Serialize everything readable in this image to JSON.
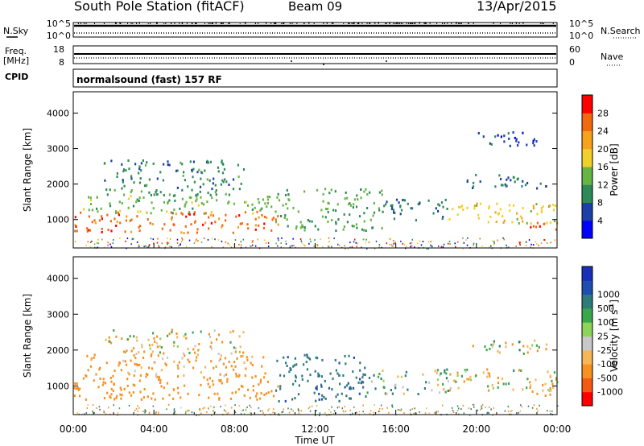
{
  "header": {
    "station": "South Pole Station (fitACF)",
    "beam": "Beam 09",
    "date": "13/Apr/2015"
  },
  "status_panels": {
    "nsky_label": "N.Sky",
    "nsky_ticks": [
      "10^5",
      "10^0"
    ],
    "nsearch_label": "N.Search",
    "nsearch_ticks": [
      "10^5",
      "10^0"
    ],
    "freq_label_line1": "Freq.",
    "freq_label_line2": "[MHz]",
    "freq_ticks": [
      "18",
      "8"
    ],
    "nave_label": "Nave",
    "nave_ticks": [
      "60",
      "0"
    ],
    "cpid_label": "CPID",
    "cpid_text": "normalsound (fast) 157 RF"
  },
  "colors": {
    "power_scale": [
      "#0000ff",
      "#1d3fa8",
      "#2f8a5a",
      "#66b544",
      "#f2cf2a",
      "#f7a21d",
      "#f26a10",
      "#ff0000"
    ],
    "velocity_scale": [
      "#ff0000",
      "#f55a12",
      "#f7911f",
      "#f5b75a",
      "#c8c8c8",
      "#8fd45a",
      "#3aa84a",
      "#2f7a7a",
      "#1f4db0",
      "#1a2fb8"
    ]
  },
  "chart_data": [
    {
      "type": "heatmap",
      "panel": "power",
      "ylabel": "Slant Range [km]",
      "xlabel": "",
      "y_ticks": [
        "1000",
        "2000",
        "3000",
        "4000"
      ],
      "ylim": [
        200,
        4600
      ],
      "xlim": [
        0,
        24
      ],
      "colorbar_label": "Power [dB]",
      "colorbar_ticks": [
        "4",
        "8",
        "12",
        "16",
        "20",
        "24",
        "28"
      ],
      "colorbar_range": [
        0,
        32
      ],
      "bands": [
        {
          "t0": 0.0,
          "t1": 10.2,
          "r0": 650,
          "r1": 1250,
          "value": 26
        },
        {
          "t0": 0.4,
          "t1": 10.0,
          "r0": 1200,
          "r1": 1700,
          "value": 14
        },
        {
          "t0": 1.5,
          "t1": 8.6,
          "r0": 1700,
          "r1": 2700,
          "value": 10
        },
        {
          "t0": 10.0,
          "t1": 15.5,
          "r0": 700,
          "r1": 1900,
          "value": 12
        },
        {
          "t0": 15.5,
          "t1": 18.6,
          "r0": 1000,
          "r1": 1600,
          "value": 8
        },
        {
          "t0": 18.6,
          "t1": 24.0,
          "r0": 900,
          "r1": 1500,
          "value": 18
        },
        {
          "t0": 19.5,
          "t1": 23.5,
          "r0": 1900,
          "r1": 2300,
          "value": 8
        },
        {
          "t0": 20.0,
          "t1": 23.0,
          "r0": 3100,
          "r1": 3500,
          "value": 6
        },
        {
          "t0": 22.5,
          "t1": 24.0,
          "r0": 750,
          "r1": 1150,
          "value": 28
        }
      ]
    },
    {
      "type": "heatmap",
      "panel": "velocity",
      "ylabel": "Slant Range [km]",
      "xlabel": "Time UT",
      "x_ticks": [
        "00:00",
        "04:00",
        "08:00",
        "12:00",
        "16:00",
        "20:00",
        "00:00"
      ],
      "y_ticks": [
        "1000",
        "2000",
        "3000",
        "4000"
      ],
      "ylim": [
        200,
        4600
      ],
      "xlim": [
        0,
        24
      ],
      "colorbar_label": "Velocity [m s",
      "colorbar_label_sup": "-1",
      "colorbar_label_end": "]",
      "colorbar_ticks": [
        "-1000",
        "-500",
        "-100",
        "-25",
        "25",
        "100",
        "500",
        "1000"
      ],
      "bands": [
        {
          "t0": 0.0,
          "t1": 10.2,
          "r0": 650,
          "r1": 1300,
          "value": -300
        },
        {
          "t0": 0.4,
          "t1": 9.5,
          "r0": 1300,
          "r1": 1900,
          "value": -150
        },
        {
          "t0": 1.5,
          "t1": 8.5,
          "r0": 1900,
          "r1": 2600,
          "value": -60
        },
        {
          "t0": 10.0,
          "t1": 14.5,
          "r0": 600,
          "r1": 1900,
          "value": 400
        },
        {
          "t0": 14.5,
          "t1": 18.6,
          "r0": 800,
          "r1": 1500,
          "value": 60
        },
        {
          "t0": 18.6,
          "t1": 24.0,
          "r0": 900,
          "r1": 1500,
          "value": -40
        },
        {
          "t0": 19.5,
          "t1": 23.5,
          "r0": 1900,
          "r1": 2300,
          "value": 0
        },
        {
          "t0": 22.5,
          "t1": 24.0,
          "r0": 750,
          "r1": 1150,
          "value": -200
        }
      ]
    }
  ]
}
